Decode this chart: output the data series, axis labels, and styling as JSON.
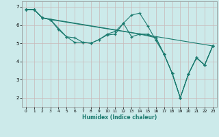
{
  "xlabel": "Humidex (Indice chaleur)",
  "bg_color": "#cceaea",
  "line_color": "#1a7a6e",
  "grid_color": "#b0d8d8",
  "xlim": [
    -0.5,
    23.5
  ],
  "ylim": [
    1.5,
    7.3
  ],
  "xticks": [
    0,
    1,
    2,
    3,
    4,
    5,
    6,
    7,
    8,
    9,
    10,
    11,
    12,
    13,
    14,
    15,
    16,
    17,
    18,
    19,
    20,
    21,
    22,
    23
  ],
  "yticks": [
    2,
    3,
    4,
    5,
    6,
    7
  ],
  "lines": [
    {
      "x": [
        0,
        1,
        2,
        3,
        4,
        5,
        6,
        7,
        8,
        9,
        10,
        11,
        12,
        13,
        14,
        15,
        16,
        17,
        18,
        19,
        20,
        21,
        22,
        23
      ],
      "y": [
        6.85,
        6.85,
        6.4,
        6.3,
        5.75,
        5.35,
        5.3,
        5.05,
        5.0,
        5.2,
        5.45,
        5.5,
        6.1,
        6.55,
        6.65,
        5.95,
        5.15,
        4.4,
        3.35,
        2.0,
        3.3,
        4.2,
        3.8,
        4.85
      ]
    },
    {
      "x": [
        0,
        1,
        2,
        3,
        5,
        6,
        7,
        8,
        9,
        10,
        11,
        12,
        13,
        14,
        16,
        17,
        18,
        19,
        20,
        21,
        22,
        23
      ],
      "y": [
        6.85,
        6.85,
        6.4,
        6.3,
        5.35,
        5.05,
        5.05,
        5.0,
        5.2,
        5.5,
        5.65,
        6.1,
        5.35,
        5.5,
        5.3,
        4.4,
        3.35,
        2.0,
        3.3,
        4.2,
        3.8,
        4.85
      ]
    },
    {
      "x": [
        0,
        1,
        2,
        3,
        14,
        15,
        16,
        17,
        18,
        19,
        20,
        21,
        22,
        23
      ],
      "y": [
        6.85,
        6.85,
        6.4,
        6.3,
        5.5,
        5.5,
        5.3,
        4.4,
        3.35,
        2.0,
        3.3,
        4.2,
        3.8,
        4.85
      ]
    },
    {
      "x": [
        0,
        1,
        2,
        23
      ],
      "y": [
        6.85,
        6.85,
        6.4,
        4.85
      ]
    }
  ]
}
